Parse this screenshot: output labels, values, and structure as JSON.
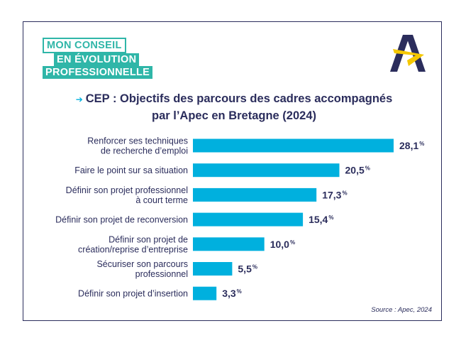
{
  "badge": {
    "line1": "MON CONSEIL",
    "line2": "EN ÉVOLUTION",
    "line3": "PROFESSIONNELLE"
  },
  "logo_icon": "apec-logo-icon",
  "colors": {
    "navy": "#2b2d5c",
    "bar": "#00b0de",
    "teal": "#2fb6a8",
    "yellow": "#f5c800"
  },
  "chart_data": {
    "type": "bar",
    "orientation": "horizontal",
    "title": "CEP : Objectifs des parcours des cadres accompagnés par l’Apec en Bretagne (2024)",
    "title_lines": [
      "CEP : Objectifs des parcours des cadres accompagnés",
      "par l’Apec en Bretagne (2024)"
    ],
    "categories": [
      [
        "Renforcer ses techniques",
        "de recherche d’emploi"
      ],
      [
        "Faire le point sur sa situation"
      ],
      [
        "Définir son projet professionnel",
        "à court terme"
      ],
      [
        "Définir son projet de reconversion"
      ],
      [
        "Définir son projet de",
        "création/reprise d’entreprise"
      ],
      [
        "Sécuriser son parcours",
        "professionnel"
      ],
      [
        "Définir son projet d’insertion"
      ]
    ],
    "values": [
      28.1,
      20.5,
      17.3,
      15.4,
      10.0,
      5.5,
      3.3
    ],
    "value_labels": [
      "28,1",
      "20,5",
      "17,3",
      "15,4",
      "10,0",
      "5,5",
      "3,3"
    ],
    "unit": "%",
    "xlim": [
      0,
      28.1
    ],
    "grid": false,
    "source": "Source : Apec, 2024"
  }
}
